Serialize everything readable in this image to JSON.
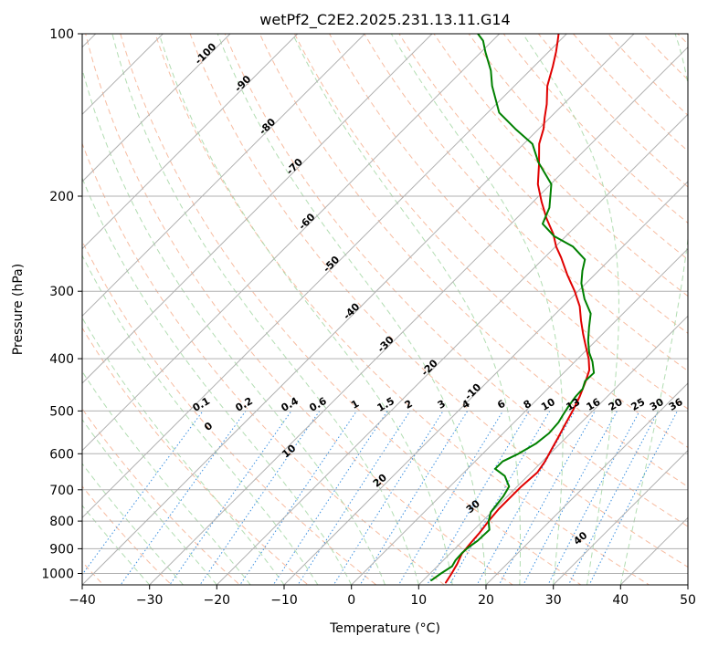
{
  "chart_data": {
    "type": "line",
    "title": "wetPf2_C2E2.2025.231.13.11.G14",
    "xlabel": "Temperature (°C)",
    "ylabel": "Pressure (hPa)",
    "xlim": [
      -40,
      50
    ],
    "ylim": [
      1050,
      100
    ],
    "y_scale": "log",
    "grid": true,
    "x_ticks": [
      -40,
      -30,
      -20,
      -10,
      0,
      10,
      20,
      30,
      40,
      50
    ],
    "y_ticks": [
      100,
      200,
      300,
      400,
      500,
      600,
      700,
      800,
      900,
      1000
    ],
    "series": [
      {
        "color": "#e00000",
        "points": [
          [
            13.7,
            1040
          ],
          [
            13.2,
            1000
          ],
          [
            12.6,
            960
          ],
          [
            11.8,
            920
          ],
          [
            11.5,
            880
          ],
          [
            11.3,
            840
          ],
          [
            10.9,
            800
          ],
          [
            10.6,
            760
          ],
          [
            10.6,
            720
          ],
          [
            10.6,
            690
          ],
          [
            10.9,
            650
          ],
          [
            10.4,
            620
          ],
          [
            9.6,
            590
          ],
          [
            8.8,
            560
          ],
          [
            7.9,
            530
          ],
          [
            7,
            500
          ],
          [
            5.9,
            470
          ],
          [
            4.5,
            440
          ],
          [
            3.4,
            420
          ],
          [
            1.6,
            400
          ],
          [
            -0.6,
            380
          ],
          [
            -2.9,
            360
          ],
          [
            -5.2,
            340
          ],
          [
            -7.5,
            320
          ],
          [
            -10.5,
            300
          ],
          [
            -14,
            280
          ],
          [
            -17.5,
            260
          ],
          [
            -19.9,
            248
          ],
          [
            -22.2,
            235
          ],
          [
            -25.5,
            220
          ],
          [
            -28.7,
            205
          ],
          [
            -31.9,
            190
          ],
          [
            -34.6,
            175
          ],
          [
            -37.7,
            160
          ],
          [
            -39.3,
            150
          ],
          [
            -40.8,
            143
          ],
          [
            -42.5,
            135
          ],
          [
            -45.1,
            125
          ],
          [
            -47.2,
            115
          ],
          [
            -48.9,
            108
          ],
          [
            -50.3,
            103
          ],
          [
            -51.2,
            100
          ]
        ]
      },
      {
        "color": "#008000",
        "points": [
          [
            11.2,
            1030
          ],
          [
            11.6,
            1000
          ],
          [
            12.2,
            970
          ],
          [
            11.8,
            945
          ],
          [
            11.7,
            915
          ],
          [
            11.8,
            895
          ],
          [
            12.2,
            870
          ],
          [
            12.3,
            830
          ],
          [
            10.9,
            800
          ],
          [
            9.9,
            770
          ],
          [
            9.6,
            740
          ],
          [
            9.4,
            720
          ],
          [
            8.8,
            690
          ],
          [
            6.6,
            660
          ],
          [
            4.1,
            640
          ],
          [
            4.1,
            620
          ],
          [
            5.3,
            600
          ],
          [
            6.4,
            575
          ],
          [
            6.8,
            550
          ],
          [
            6.6,
            525
          ],
          [
            6.2,
            510
          ],
          [
            5.7,
            490
          ],
          [
            5.3,
            470
          ],
          [
            5.2,
            455
          ],
          [
            4.4,
            440
          ],
          [
            4.5,
            425
          ],
          [
            2.6,
            405
          ],
          [
            0.8,
            390
          ],
          [
            -1.2,
            370
          ],
          [
            -3,
            350
          ],
          [
            -4.8,
            330
          ],
          [
            -7.9,
            310
          ],
          [
            -10.7,
            290
          ],
          [
            -12.4,
            275
          ],
          [
            -13.7,
            262
          ],
          [
            -17.4,
            248
          ],
          [
            -21.8,
            237
          ],
          [
            -25.3,
            225
          ],
          [
            -26.7,
            210
          ],
          [
            -29.9,
            190
          ],
          [
            -35.1,
            173
          ],
          [
            -38.7,
            160
          ],
          [
            -43.5,
            150
          ],
          [
            -48.3,
            140
          ],
          [
            -53.3,
            125
          ],
          [
            -55.8,
            117
          ],
          [
            -59.4,
            108
          ],
          [
            -61.4,
            103
          ],
          [
            -63.2,
            100
          ]
        ]
      }
    ],
    "isotherm_labels": [
      "-100",
      "-90",
      "-80",
      "-70",
      "-60",
      "-50",
      "-40",
      "-30",
      "-20",
      "-10"
    ],
    "mixing_ratio_labels": [
      "0.1",
      "0.2",
      "0.4",
      "0.6",
      "1",
      "1.5",
      "2",
      "3",
      "4",
      "6",
      "8",
      "10",
      "13",
      "16",
      "20",
      "25",
      "30",
      "36"
    ],
    "dry_adiabat_labels": [
      "0",
      "10",
      "20",
      "30",
      "40"
    ]
  },
  "colors": {
    "grid": "#b0b0b0",
    "dry_adiabat": "#f4a582",
    "moist_adiabat": "#9fd49f",
    "mixing_ratio": "#3a8fe0",
    "isotherm_label": "#2b78b8",
    "dry_label": "#d62a2a"
  }
}
